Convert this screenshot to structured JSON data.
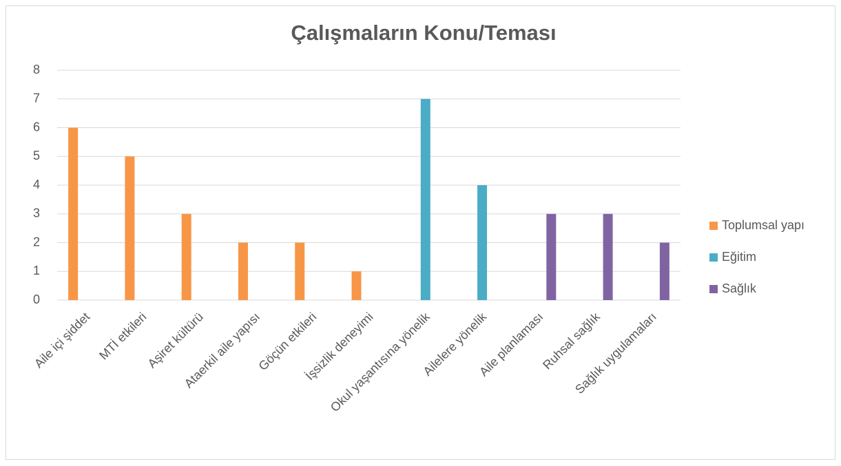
{
  "chart_data": {
    "type": "bar",
    "title": "Çalışmaların Konu/Teması",
    "categories": [
      "Aile içi şiddet",
      "MTİ etkileri",
      "Aşiret kültürü",
      "Ataerkil aile yapısı",
      "Göçün etkileri",
      "İşsizlik deneyimi",
      "Okul yaşantısına yönelik",
      "Ailelere yönelik",
      "Aile planlaması",
      "Ruhsal sağlık",
      "Sağlık uygulamaları"
    ],
    "series": [
      {
        "name": "Toplumsal yapı",
        "color": "#f79646",
        "values": [
          6,
          5,
          3,
          2,
          2,
          1,
          null,
          null,
          null,
          null,
          null
        ]
      },
      {
        "name": "Eğitim",
        "color": "#4bacc6",
        "values": [
          null,
          null,
          null,
          null,
          null,
          null,
          7,
          4,
          null,
          null,
          null
        ]
      },
      {
        "name": "Sağlık",
        "color": "#8064a2",
        "values": [
          null,
          null,
          null,
          null,
          null,
          null,
          null,
          null,
          3,
          3,
          2
        ]
      }
    ],
    "ylim": [
      0,
      8
    ],
    "yticks": [
      0,
      1,
      2,
      3,
      4,
      5,
      6,
      7,
      8
    ],
    "grid": true,
    "legend": "right"
  }
}
